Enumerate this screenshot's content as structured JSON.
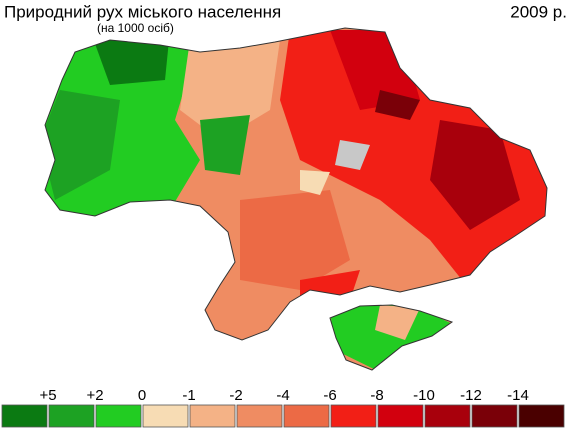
{
  "header": {
    "title": "Природний рух  міського населення",
    "subtitle": "(на 1000 осіб)",
    "year": "2009 р."
  },
  "legend": {
    "labels": [
      "+5",
      "+2",
      "0",
      "-1",
      "-2",
      "-4",
      "-6",
      "-8",
      "-10",
      "-12",
      "-14"
    ],
    "colors": [
      "#0b7a12",
      "#1da223",
      "#22cc22",
      "#f7dcb4",
      "#f4b286",
      "#ef8c62",
      "#ec6a45",
      "#f21f16",
      "#d2000e",
      "#a8000c",
      "#7a0008",
      "#4a0000"
    ]
  }
}
